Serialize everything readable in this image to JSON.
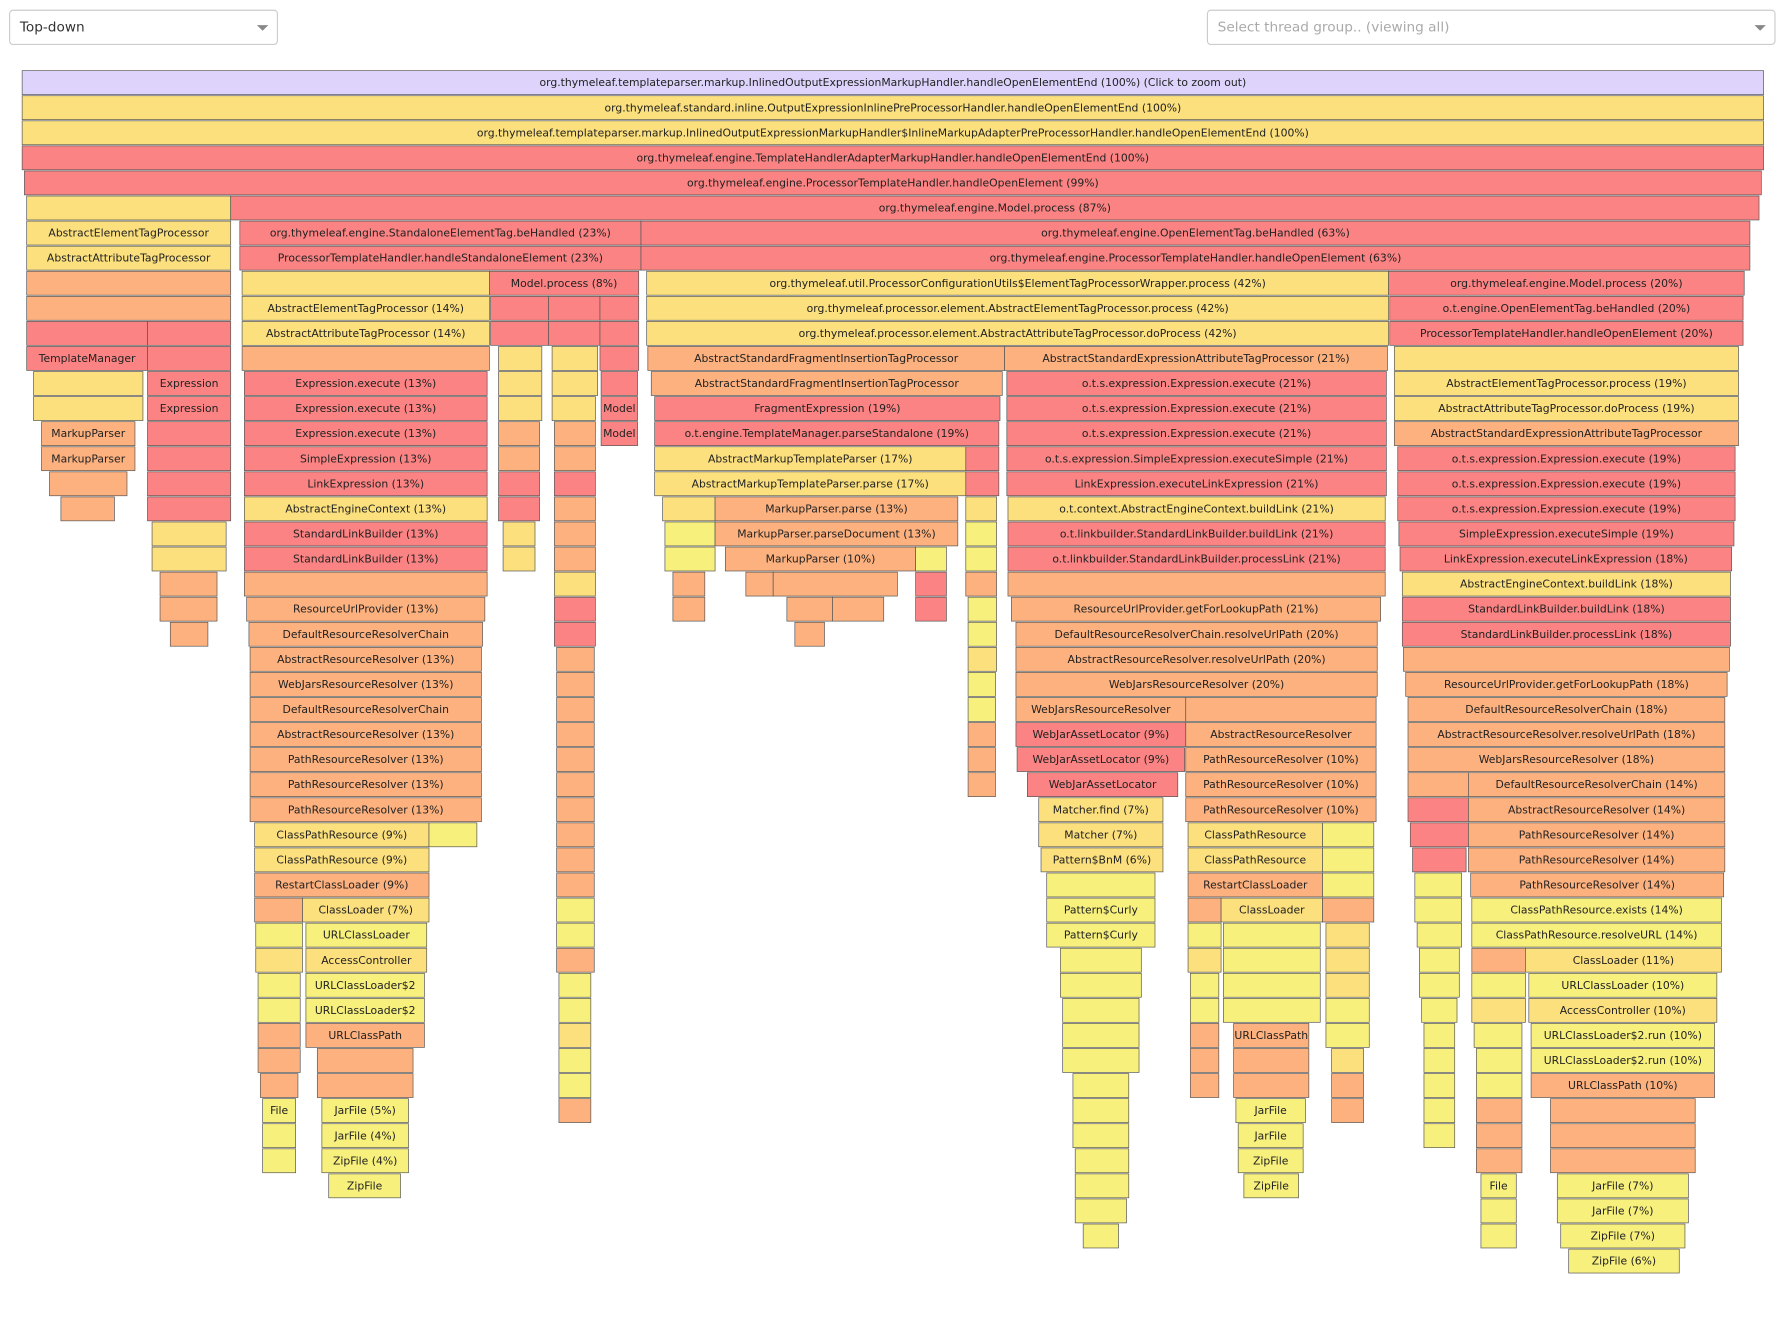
{
  "toolbar": {
    "view_mode": "Top-down",
    "thread_group_placeholder": "Select thread group.. (viewing all)"
  },
  "frames": [
    [
      "org.thymeleaf.templateparser.markup.InlinedOutputExpressionMarkupHandler.handleOpenElementEnd (100%) (Click to zoom out)"
    ],
    [
      "org.thymeleaf.standard.inline.OutputExpressionInlinePreProcessorHandler.handleOpenElementEnd (100%)"
    ],
    [
      "org.thymeleaf.templateparser.markup.InlinedOutputExpressionMarkupHandler$InlineMarkupAdapterPreProcessorHandler.handleOpenElementEnd (100%)"
    ],
    [
      "org.thymeleaf.engine.TemplateHandlerAdapterMarkupHandler.handleOpenElementEnd (100%)"
    ],
    [
      "org.thymeleaf.engine.ProcessorTemplateHandler.handleOpenElement (99%)"
    ],
    [
      "org.thymeleaf.engine.Model.process (87%)"
    ],
    [
      "AbstractElementTagProcessor",
      "org.thymeleaf.engine.StandaloneElementTag.beHandled (23%)",
      "org.thymeleaf.engine.OpenElementTag.beHandled (63%)"
    ],
    [
      "AbstractAttributeTagProcessor",
      "ProcessorTemplateHandler.handleStandaloneElement (23%)",
      "org.thymeleaf.engine.ProcessorTemplateHandler.handleOpenElement (63%)"
    ],
    [
      "Model.process (8%)",
      "org.thymeleaf.util.ProcessorConfigurationUtils$ElementTagProcessorWrapper.process (42%)",
      "org.thymeleaf.engine.Model.process (20%)"
    ],
    [
      "AbstractElementTagProcessor (14%)",
      "org.thymeleaf.processor.element.AbstractElementTagProcessor.process (42%)",
      "o.t.engine.OpenElementTag.beHandled (20%)"
    ],
    [
      "AbstractAttributeTagProcessor (14%)",
      "org.thymeleaf.processor.element.AbstractAttributeTagProcessor.doProcess (42%)",
      "ProcessorTemplateHandler.handleOpenElement (20%)"
    ],
    [
      "TemplateManager",
      "AbstractStandardFragmentInsertionTagProcessor",
      "AbstractStandardExpressionAttributeTagProcessor (21%)"
    ],
    [
      "Expression",
      "Expression.execute (13%)",
      "AbstractStandardFragmentInsertionTagProcessor",
      "o.t.s.expression.Expression.execute (21%)",
      "AbstractElementTagProcessor.process (19%)"
    ],
    [
      "Expression",
      "Expression.execute (13%)",
      "Model",
      "FragmentExpression (19%)",
      "o.t.s.expression.Expression.execute (21%)",
      "AbstractAttributeTagProcessor.doProcess (19%)"
    ],
    [
      "MarkupParser",
      "Expression.execute (13%)",
      "Model",
      "o.t.engine.TemplateManager.parseStandalone (19%)",
      "o.t.s.expression.Expression.execute (21%)",
      "AbstractStandardExpressionAttributeTagProcessor"
    ],
    [
      "MarkupParser",
      "SimpleExpression (13%)",
      "AbstractMarkupTemplateParser (17%)",
      "o.t.s.expression.SimpleExpression.executeSimple (21%)",
      "o.t.s.expression.Expression.execute (19%)"
    ],
    [
      "LinkExpression (13%)",
      "AbstractMarkupTemplateParser.parse (17%)",
      "LinkExpression.executeLinkExpression (21%)",
      "o.t.s.expression.Expression.execute (19%)"
    ],
    [
      "AbstractEngineContext (13%)",
      "MarkupParser.parse (13%)",
      "o.t.context.AbstractEngineContext.buildLink (21%)",
      "o.t.s.expression.Expression.execute (19%)"
    ],
    [
      "StandardLinkBuilder (13%)",
      "MarkupParser.parseDocument (13%)",
      "o.t.linkbuilder.StandardLinkBuilder.buildLink (21%)",
      "SimpleExpression.executeSimple (19%)"
    ],
    [
      "StandardLinkBuilder (13%)",
      "MarkupParser (10%)",
      "o.t.linkbuilder.StandardLinkBuilder.processLink (21%)",
      "LinkExpression.executeLinkExpression (18%)"
    ],
    [
      "AbstractEngineContext.buildLink (18%)"
    ],
    [
      "ResourceUrlProvider (13%)",
      "ResourceUrlProvider.getForLookupPath (21%)",
      "StandardLinkBuilder.buildLink (18%)"
    ],
    [
      "DefaultResourceResolverChain",
      "DefaultResourceResolverChain.resolveUrlPath (20%)",
      "StandardLinkBuilder.processLink (18%)"
    ],
    [
      "AbstractResourceResolver (13%)",
      "AbstractResourceResolver.resolveUrlPath (20%)"
    ],
    [
      "WebJarsResourceResolver (13%)",
      "WebJarsResourceResolver (20%)",
      "ResourceUrlProvider.getForLookupPath (18%)"
    ],
    [
      "DefaultResourceResolverChain",
      "WebJarsResourceResolver",
      "DefaultResourceResolverChain (18%)"
    ],
    [
      "AbstractResourceResolver (13%)",
      "WebJarAssetLocator (9%)",
      "AbstractResourceResolver",
      "AbstractResourceResolver.resolveUrlPath (18%)"
    ],
    [
      "PathResourceResolver (13%)",
      "WebJarAssetLocator (9%)",
      "PathResourceResolver (10%)",
      "WebJarsResourceResolver (18%)"
    ],
    [
      "PathResourceResolver (13%)",
      "WebJarAssetLocator",
      "PathResourceResolver (10%)",
      "DefaultResourceResolverChain (14%)"
    ],
    [
      "PathResourceResolver (13%)",
      "Matcher.find (7%)",
      "PathResourceResolver (10%)",
      "AbstractResourceResolver (14%)"
    ],
    [
      "ClassPathResource (9%)",
      "Matcher (7%)",
      "ClassPathResource",
      "PathResourceResolver (14%)"
    ],
    [
      "ClassPathResource (9%)",
      "Pattern$BnM (6%)",
      "ClassPathResource",
      "PathResourceResolver (14%)"
    ],
    [
      "RestartClassLoader (9%)",
      "RestartClassLoader",
      "PathResourceResolver (14%)"
    ],
    [
      "ClassLoader (7%)",
      "Pattern$Curly",
      "ClassLoader",
      "ClassPathResource.exists (14%)"
    ],
    [
      "URLClassLoader",
      "Pattern$Curly",
      "ClassPathResource.resolveURL (14%)"
    ],
    [
      "AccessController",
      "ClassLoader (11%)"
    ],
    [
      "URLClassLoader$2",
      "URLClassLoader (10%)"
    ],
    [
      "URLClassLoader$2",
      "AccessController (10%)"
    ],
    [
      "URLClassPath",
      "URLClassPath",
      "URLClassLoader$2.run (10%)"
    ],
    [
      "URLClassLoader$2.run (10%)"
    ],
    [
      "URLClassPath (10%)"
    ],
    [
      "File",
      "JarFile (5%)",
      "JarFile"
    ],
    [
      "JarFile (4%)",
      "JarFile"
    ],
    [
      "ZipFile (4%)",
      "ZipFile"
    ],
    [
      "ZipFile",
      "ZipFile",
      "File",
      "JarFile (7%)"
    ],
    [
      "JarFile (7%)"
    ],
    [
      "ZipFile (7%)"
    ],
    [
      "ZipFile (6%)"
    ]
  ]
}
